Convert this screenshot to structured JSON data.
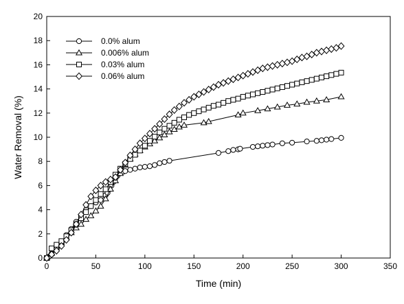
{
  "chart_data": {
    "type": "line",
    "title": "",
    "xlabel": "Time (min)",
    "ylabel": "Water Removal (%)",
    "xlim": [
      0,
      350
    ],
    "ylim": [
      0,
      20
    ],
    "xticks": [
      0,
      50,
      100,
      150,
      200,
      250,
      300,
      350
    ],
    "yticks": [
      0,
      2,
      4,
      6,
      8,
      10,
      12,
      14,
      16,
      18,
      20
    ],
    "grid": false,
    "legend_position": "top-left",
    "series": [
      {
        "name": "0.0% alum",
        "marker": "circle",
        "x": [
          0,
          2,
          5,
          10,
          15,
          20,
          25,
          30,
          35,
          40,
          45,
          50,
          55,
          60,
          62,
          64,
          66,
          68,
          70,
          72,
          74,
          76,
          78,
          80,
          85,
          90,
          95,
          100,
          105,
          110,
          115,
          120,
          125,
          175,
          185,
          190,
          195,
          197,
          210,
          215,
          220,
          225,
          230,
          240,
          250,
          265,
          275,
          280,
          285,
          290,
          300
        ],
        "y": [
          0,
          0.1,
          0.3,
          0.8,
          1.3,
          1.9,
          2.4,
          3.0,
          3.5,
          4.0,
          4.3,
          4.6,
          4.8,
          5.2,
          5.4,
          5.7,
          6.0,
          6.3,
          6.6,
          6.8,
          7.0,
          7.1,
          7.15,
          7.2,
          7.3,
          7.4,
          7.5,
          7.55,
          7.6,
          7.7,
          7.85,
          7.95,
          8.05,
          8.7,
          8.85,
          8.95,
          9.0,
          9.05,
          9.2,
          9.25,
          9.3,
          9.35,
          9.4,
          9.5,
          9.55,
          9.65,
          9.7,
          9.75,
          9.8,
          9.85,
          9.95
        ]
      },
      {
        "name": "0.006% alum",
        "marker": "triangle",
        "x": [
          0,
          5,
          10,
          15,
          20,
          25,
          30,
          35,
          40,
          45,
          50,
          55,
          60,
          65,
          70,
          75,
          80,
          85,
          90,
          95,
          100,
          105,
          110,
          115,
          120,
          125,
          130,
          135,
          140,
          160,
          165,
          195,
          200,
          215,
          225,
          235,
          245,
          255,
          265,
          275,
          285,
          300
        ],
        "y": [
          0,
          0.4,
          0.9,
          1.3,
          1.7,
          2.1,
          2.5,
          2.8,
          3.2,
          3.5,
          3.9,
          4.3,
          4.9,
          5.7,
          6.4,
          7.0,
          7.7,
          8.2,
          8.6,
          8.9,
          9.2,
          9.45,
          9.7,
          9.95,
          10.2,
          10.45,
          10.65,
          10.85,
          11.0,
          11.2,
          11.3,
          11.85,
          12.0,
          12.2,
          12.35,
          12.5,
          12.65,
          12.75,
          12.9,
          13.0,
          13.1,
          13.35
        ]
      },
      {
        "name": "0.03% alum",
        "marker": "square",
        "x": [
          0,
          5,
          10,
          15,
          20,
          25,
          30,
          35,
          40,
          45,
          50,
          55,
          60,
          65,
          70,
          75,
          80,
          85,
          90,
          95,
          100,
          105,
          110,
          115,
          120,
          125,
          130,
          135,
          140,
          145,
          150,
          155,
          160,
          165,
          170,
          175,
          180,
          185,
          190,
          195,
          200,
          205,
          210,
          215,
          220,
          225,
          230,
          235,
          240,
          245,
          250,
          255,
          260,
          265,
          270,
          275,
          280,
          285,
          290,
          295,
          300
        ],
        "y": [
          0,
          0.8,
          1.1,
          1.4,
          1.8,
          2.3,
          2.8,
          3.3,
          3.8,
          4.3,
          4.8,
          5.3,
          5.7,
          6.3,
          6.9,
          7.4,
          7.8,
          8.2,
          8.55,
          8.9,
          9.3,
          9.7,
          10.05,
          10.4,
          10.7,
          10.95,
          11.2,
          11.45,
          11.65,
          11.85,
          12.0,
          12.15,
          12.3,
          12.45,
          12.6,
          12.7,
          12.85,
          13.0,
          13.1,
          13.2,
          13.35,
          13.45,
          13.55,
          13.65,
          13.75,
          13.85,
          13.95,
          14.05,
          14.15,
          14.25,
          14.35,
          14.45,
          14.55,
          14.65,
          14.75,
          14.85,
          14.95,
          15.05,
          15.15,
          15.25,
          15.35
        ]
      },
      {
        "name": "0.06% alum",
        "marker": "diamond",
        "x": [
          0,
          5,
          10,
          15,
          20,
          25,
          30,
          35,
          40,
          45,
          50,
          55,
          60,
          65,
          70,
          75,
          80,
          85,
          90,
          95,
          100,
          105,
          110,
          115,
          120,
          125,
          130,
          135,
          140,
          145,
          150,
          155,
          160,
          165,
          170,
          175,
          180,
          185,
          190,
          195,
          200,
          205,
          210,
          215,
          220,
          225,
          230,
          235,
          240,
          245,
          250,
          255,
          260,
          265,
          270,
          275,
          280,
          285,
          290,
          295,
          300
        ],
        "y": [
          0,
          0.3,
          0.6,
          1.0,
          1.5,
          2.1,
          2.8,
          3.6,
          4.4,
          5.1,
          5.6,
          6.0,
          6.3,
          6.5,
          6.7,
          7.3,
          7.9,
          8.5,
          9.0,
          9.5,
          9.9,
          10.3,
          10.7,
          11.1,
          11.5,
          11.9,
          12.25,
          12.55,
          12.85,
          13.1,
          13.35,
          13.55,
          13.75,
          13.95,
          14.15,
          14.35,
          14.5,
          14.65,
          14.8,
          14.95,
          15.1,
          15.25,
          15.4,
          15.55,
          15.7,
          15.8,
          15.9,
          16.0,
          16.1,
          16.2,
          16.3,
          16.45,
          16.6,
          16.7,
          16.85,
          17.0,
          17.1,
          17.2,
          17.3,
          17.4,
          17.55
        ]
      }
    ]
  }
}
